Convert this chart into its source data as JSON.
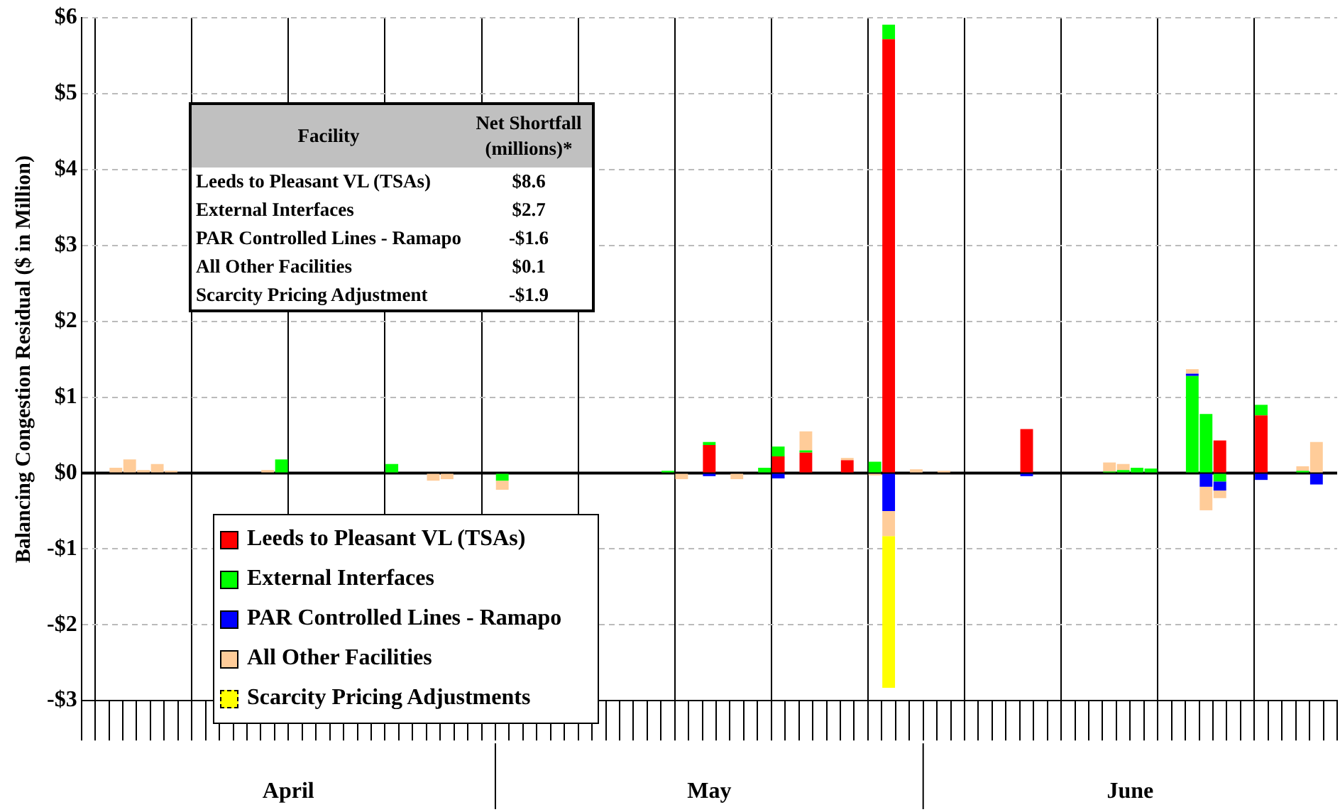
{
  "chart_data": {
    "type": "bar",
    "stacked": true,
    "ylabel": "Balancing Congestion Residual ($ in Million)",
    "categories": [
      null,
      null,
      null,
      null,
      null,
      null,
      null,
      null,
      null,
      null,
      null,
      null,
      null,
      null,
      null,
      null,
      null,
      null,
      null,
      null,
      null,
      null,
      null,
      null,
      null,
      null,
      null,
      null,
      null,
      null,
      null,
      null,
      null,
      null,
      null,
      null,
      null,
      null,
      null,
      null,
      null,
      null,
      null,
      null,
      null,
      null,
      null,
      null,
      null,
      null,
      null,
      null,
      null,
      null,
      null,
      null,
      null,
      null,
      null,
      null,
      null,
      null,
      null,
      null,
      null,
      null,
      null,
      null,
      null,
      null,
      null,
      null,
      null,
      null,
      null,
      null,
      null,
      null,
      null,
      null,
      null,
      null,
      null,
      null,
      null,
      null,
      null,
      null,
      null,
      null,
      null
    ],
    "series": [
      {
        "name": "Leeds to Pleasant VL (TSAs)",
        "color": "#ff0000",
        "values": [
          null,
          null,
          null,
          null,
          null,
          null,
          null,
          null,
          null,
          null,
          null,
          null,
          null,
          null,
          null,
          null,
          null,
          null,
          null,
          null,
          null,
          null,
          null,
          null,
          null,
          null,
          null,
          null,
          null,
          null,
          null,
          null,
          null,
          null,
          null,
          null,
          null,
          null,
          null,
          null,
          null,
          null,
          null,
          null,
          null,
          0.37,
          null,
          null,
          null,
          null,
          0.22,
          null,
          0.27,
          null,
          null,
          0.17,
          null,
          null,
          5.72,
          null,
          null,
          null,
          null,
          null,
          null,
          null,
          null,
          null,
          0.58,
          null,
          null,
          null,
          null,
          null,
          null,
          null,
          null,
          null,
          null,
          null,
          null,
          null,
          0.43,
          null,
          null,
          0.76,
          null,
          null,
          null,
          null,
          null
        ]
      },
      {
        "name": "External Interfaces",
        "color": "#00ff00",
        "values": [
          null,
          null,
          null,
          null,
          null,
          null,
          null,
          null,
          null,
          null,
          null,
          null,
          null,
          null,
          0.18,
          null,
          null,
          null,
          null,
          null,
          null,
          null,
          0.12,
          null,
          null,
          null,
          null,
          null,
          null,
          null,
          -0.1,
          null,
          null,
          null,
          null,
          null,
          null,
          null,
          null,
          null,
          null,
          null,
          0.03,
          null,
          null,
          0.04,
          null,
          null,
          null,
          0.07,
          0.13,
          null,
          0.03,
          null,
          null,
          null,
          null,
          0.15,
          0.19,
          null,
          null,
          null,
          null,
          null,
          null,
          null,
          null,
          null,
          null,
          null,
          null,
          null,
          null,
          null,
          0.02,
          0.04,
          0.07,
          0.06,
          null,
          null,
          1.28,
          0.78,
          -0.11,
          null,
          null,
          0.14,
          null,
          null,
          0.03,
          null,
          null
        ]
      },
      {
        "name": "PAR Controlled Lines - Ramapo",
        "color": "#0000ff",
        "values": [
          null,
          null,
          null,
          null,
          null,
          null,
          null,
          null,
          null,
          null,
          null,
          null,
          null,
          null,
          null,
          null,
          null,
          null,
          null,
          null,
          null,
          null,
          null,
          null,
          null,
          null,
          null,
          null,
          null,
          null,
          null,
          null,
          null,
          null,
          null,
          null,
          null,
          null,
          null,
          null,
          null,
          null,
          null,
          null,
          null,
          -0.04,
          null,
          null,
          null,
          null,
          -0.07,
          null,
          null,
          null,
          null,
          null,
          null,
          null,
          -0.5,
          null,
          null,
          null,
          null,
          null,
          null,
          null,
          null,
          null,
          -0.04,
          null,
          null,
          null,
          null,
          null,
          null,
          null,
          null,
          null,
          null,
          null,
          0.03,
          -0.18,
          -0.12,
          null,
          null,
          -0.09,
          null,
          null,
          null,
          -0.15,
          null
        ]
      },
      {
        "name": "All Other Facilities",
        "color": "#ffcc99",
        "values": [
          null,
          null,
          0.07,
          0.18,
          0.04,
          0.12,
          0.03,
          null,
          null,
          null,
          null,
          null,
          null,
          0.04,
          null,
          null,
          null,
          null,
          null,
          null,
          null,
          null,
          null,
          null,
          null,
          -0.1,
          -0.08,
          null,
          null,
          null,
          -0.12,
          null,
          null,
          null,
          null,
          null,
          null,
          null,
          null,
          null,
          null,
          null,
          null,
          -0.08,
          null,
          null,
          null,
          -0.08,
          null,
          null,
          null,
          null,
          0.25,
          null,
          null,
          0.03,
          null,
          -0.03,
          -0.33,
          null,
          0.05,
          null,
          0.03,
          null,
          null,
          null,
          null,
          null,
          null,
          null,
          null,
          null,
          null,
          null,
          0.12,
          0.08,
          null,
          null,
          null,
          null,
          0.06,
          -0.31,
          -0.1,
          null,
          null,
          null,
          null,
          null,
          0.06,
          0.41,
          null
        ]
      },
      {
        "name": "Scarcity Pricing Adjustments",
        "color": "#ffff00",
        "values": [
          null,
          null,
          null,
          null,
          null,
          null,
          null,
          null,
          null,
          null,
          null,
          null,
          null,
          null,
          null,
          null,
          null,
          null,
          null,
          null,
          null,
          null,
          null,
          null,
          null,
          null,
          null,
          null,
          null,
          null,
          null,
          null,
          null,
          null,
          null,
          null,
          null,
          null,
          null,
          null,
          null,
          null,
          null,
          null,
          null,
          null,
          null,
          null,
          null,
          null,
          null,
          null,
          null,
          null,
          null,
          null,
          null,
          null,
          -2.0,
          null,
          null,
          null,
          null,
          null,
          null,
          null,
          null,
          null,
          null,
          null,
          null,
          null,
          null,
          null,
          null,
          null,
          null,
          null,
          null,
          null,
          null,
          null,
          null,
          null,
          null,
          null,
          null,
          null,
          null,
          null,
          null
        ]
      }
    ],
    "ylim": [
      -3,
      6
    ],
    "yticks": [
      {
        "value": -3,
        "label": "-$3"
      },
      {
        "value": -2,
        "label": "-$2"
      },
      {
        "value": -1,
        "label": "-$1"
      },
      {
        "value": 0,
        "label": "$0"
      },
      {
        "value": 1,
        "label": "$1"
      },
      {
        "value": 2,
        "label": "$2"
      },
      {
        "value": 3,
        "label": "$3"
      },
      {
        "value": 4,
        "label": "$4"
      },
      {
        "value": 5,
        "label": "$5"
      },
      {
        "value": 6,
        "label": "$6"
      }
    ],
    "grid": true,
    "legend": "bottom left",
    "annotations": [
      "April",
      "May",
      "June",
      "Facility",
      "Net Shortfall (millions)*",
      "Leeds to Pleasant VL (TSAs)",
      "$8.6",
      "External Interfaces",
      "$2.7",
      "PAR Controlled Lines - Ramapo",
      "-$1.6",
      "All Other Facilities",
      "$0.1",
      "Scarcity Pricing Adjustment",
      "-$1.9"
    ]
  }
}
